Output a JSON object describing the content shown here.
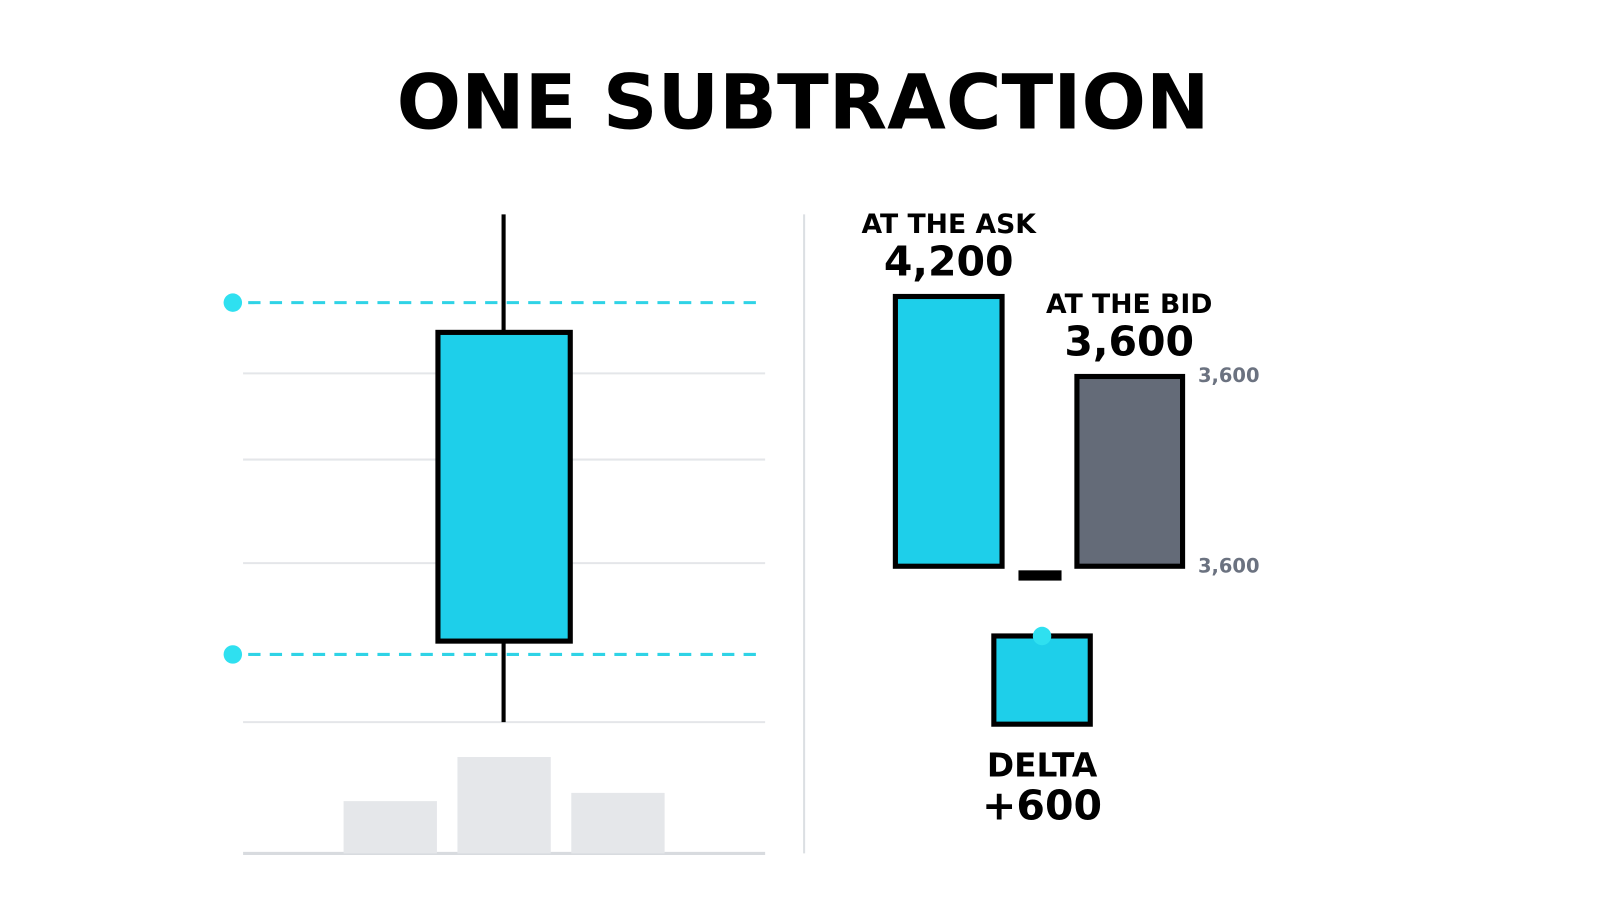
{
  "title": "ONE SUBTRACTION",
  "ask": {
    "label": "AT THE ASK",
    "value": "4,200"
  },
  "bid": {
    "label": "AT THE BID",
    "value": "3,600",
    "scale_labels": [
      "3,600",
      "3,600"
    ]
  },
  "delta": {
    "label": "DELTA",
    "value": "+600"
  }
}
